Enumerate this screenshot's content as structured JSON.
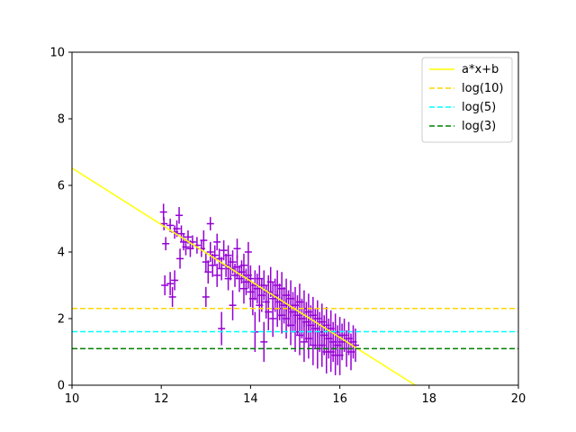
{
  "chart_data": {
    "type": "scatter",
    "xlim": [
      10,
      20
    ],
    "ylim": [
      0,
      10
    ],
    "xticks": [
      "10",
      "12",
      "14",
      "16",
      "18",
      "20"
    ],
    "yticks": [
      "0",
      "2",
      "4",
      "6",
      "8",
      "10"
    ],
    "grid": false,
    "legend_position": "top-right",
    "marker_color": "#9400D3",
    "lines": [
      {
        "name": "a*x+b",
        "kind": "fit",
        "slope": -0.848,
        "intercept": 15.0,
        "color": "#FFFF00",
        "dash": "solid"
      },
      {
        "name": "log(10)",
        "kind": "hline",
        "y": 2.3026,
        "color": "#FFD700",
        "dash": "dashed"
      },
      {
        "name": "log(5)",
        "kind": "hline",
        "y": 1.6094,
        "color": "#00FFFF",
        "dash": "dashed"
      },
      {
        "name": "log(3)",
        "kind": "hline",
        "y": 1.0986,
        "color": "#008000",
        "dash": "dashed"
      }
    ],
    "points": [
      [
        12.05,
        5.2,
        0.25
      ],
      [
        12.06,
        4.85,
        0.2
      ],
      [
        12.1,
        4.25,
        0.2
      ],
      [
        12.08,
        3.0,
        0.3
      ],
      [
        12.2,
        3.05,
        0.35
      ],
      [
        12.25,
        2.65,
        0.3
      ],
      [
        12.3,
        3.15,
        0.3
      ],
      [
        12.2,
        4.8,
        0.2
      ],
      [
        12.3,
        4.6,
        0.2
      ],
      [
        12.35,
        4.7,
        0.25
      ],
      [
        12.4,
        5.1,
        0.25
      ],
      [
        12.45,
        4.55,
        0.25
      ],
      [
        12.5,
        4.3,
        0.25
      ],
      [
        12.42,
        3.8,
        0.3
      ],
      [
        12.55,
        4.15,
        0.25
      ],
      [
        12.6,
        4.45,
        0.2
      ],
      [
        12.65,
        4.1,
        0.25
      ],
      [
        12.7,
        4.3,
        0.2
      ],
      [
        12.8,
        4.2,
        0.25
      ],
      [
        12.9,
        4.1,
        0.25
      ],
      [
        12.95,
        4.35,
        0.3
      ],
      [
        13.0,
        3.7,
        0.3
      ],
      [
        13.0,
        2.65,
        0.3
      ],
      [
        13.05,
        3.4,
        0.35
      ],
      [
        13.1,
        4.85,
        0.2
      ],
      [
        13.1,
        4.0,
        0.3
      ],
      [
        13.15,
        3.6,
        0.35
      ],
      [
        13.2,
        3.9,
        0.3
      ],
      [
        13.25,
        4.3,
        0.25
      ],
      [
        13.25,
        3.3,
        0.35
      ],
      [
        13.3,
        3.8,
        0.3
      ],
      [
        13.35,
        1.7,
        0.5
      ],
      [
        13.35,
        3.5,
        0.35
      ],
      [
        13.4,
        4.05,
        0.3
      ],
      [
        13.45,
        3.6,
        0.35
      ],
      [
        13.5,
        3.9,
        0.3
      ],
      [
        13.5,
        3.2,
        0.35
      ],
      [
        13.55,
        3.5,
        0.35
      ],
      [
        13.6,
        3.7,
        0.35
      ],
      [
        13.6,
        2.4,
        0.45
      ],
      [
        13.65,
        3.3,
        0.35
      ],
      [
        13.7,
        3.55,
        0.35
      ],
      [
        13.7,
        4.1,
        0.3
      ],
      [
        13.75,
        3.2,
        0.4
      ],
      [
        13.8,
        3.4,
        0.35
      ],
      [
        13.85,
        2.9,
        0.45
      ],
      [
        13.85,
        3.6,
        0.35
      ],
      [
        13.9,
        3.1,
        0.4
      ],
      [
        13.95,
        3.3,
        0.4
      ],
      [
        13.95,
        4.0,
        0.3
      ],
      [
        14.0,
        2.8,
        0.45
      ],
      [
        14.0,
        3.2,
        0.4
      ],
      [
        14.05,
        2.6,
        0.5
      ],
      [
        14.1,
        3.0,
        0.45
      ],
      [
        14.1,
        1.6,
        0.6
      ],
      [
        14.15,
        2.9,
        0.45
      ],
      [
        14.2,
        3.2,
        0.4
      ],
      [
        14.2,
        2.4,
        0.5
      ],
      [
        14.25,
        2.7,
        0.5
      ],
      [
        14.3,
        3.0,
        0.45
      ],
      [
        14.3,
        1.3,
        0.6
      ],
      [
        14.35,
        2.5,
        0.5
      ],
      [
        14.4,
        2.8,
        0.5
      ],
      [
        14.4,
        2.2,
        0.55
      ],
      [
        14.45,
        3.1,
        0.45
      ],
      [
        14.5,
        2.6,
        0.5
      ],
      [
        14.5,
        2.0,
        0.55
      ],
      [
        14.55,
        2.7,
        0.5
      ],
      [
        14.6,
        2.3,
        0.55
      ],
      [
        14.6,
        3.0,
        0.45
      ],
      [
        14.65,
        2.5,
        0.55
      ],
      [
        14.7,
        2.1,
        0.55
      ],
      [
        14.7,
        2.9,
        0.5
      ],
      [
        14.75,
        2.4,
        0.55
      ],
      [
        14.8,
        2.0,
        0.6
      ],
      [
        14.8,
        2.7,
        0.5
      ],
      [
        14.85,
        2.3,
        0.55
      ],
      [
        14.9,
        1.8,
        0.6
      ],
      [
        14.9,
        2.6,
        0.55
      ],
      [
        14.95,
        2.2,
        0.6
      ],
      [
        15.0,
        2.4,
        0.55
      ],
      [
        15.0,
        1.6,
        0.6
      ],
      [
        15.05,
        2.1,
        0.6
      ],
      [
        15.1,
        2.5,
        0.55
      ],
      [
        15.1,
        1.5,
        0.6
      ],
      [
        15.15,
        2.0,
        0.6
      ],
      [
        15.2,
        2.3,
        0.55
      ],
      [
        15.2,
        1.3,
        0.6
      ],
      [
        15.25,
        1.9,
        0.6
      ],
      [
        15.3,
        2.2,
        0.55
      ],
      [
        15.3,
        1.4,
        0.6
      ],
      [
        15.35,
        1.8,
        0.6
      ],
      [
        15.4,
        2.1,
        0.55
      ],
      [
        15.4,
        1.2,
        0.6
      ],
      [
        15.45,
        1.7,
        0.6
      ],
      [
        15.5,
        2.0,
        0.55
      ],
      [
        15.5,
        1.1,
        0.6
      ],
      [
        15.55,
        1.6,
        0.6
      ],
      [
        15.6,
        1.9,
        0.55
      ],
      [
        15.6,
        1.2,
        0.65
      ],
      [
        15.65,
        1.5,
        0.6
      ],
      [
        15.7,
        1.8,
        0.55
      ],
      [
        15.7,
        1.0,
        0.65
      ],
      [
        15.75,
        1.4,
        0.6
      ],
      [
        15.8,
        1.7,
        0.55
      ],
      [
        15.8,
        1.0,
        0.6
      ],
      [
        15.85,
        1.3,
        0.6
      ],
      [
        15.9,
        1.6,
        0.55
      ],
      [
        15.9,
        0.9,
        0.6
      ],
      [
        15.95,
        1.2,
        0.6
      ],
      [
        16.0,
        1.5,
        0.55
      ],
      [
        16.0,
        0.9,
        0.6
      ],
      [
        16.05,
        1.3,
        0.55
      ],
      [
        16.1,
        1.5,
        0.5
      ],
      [
        16.15,
        1.1,
        0.55
      ],
      [
        16.2,
        1.4,
        0.5
      ],
      [
        16.25,
        1.0,
        0.55
      ],
      [
        16.3,
        1.3,
        0.5
      ],
      [
        16.35,
        1.2,
        0.5
      ]
    ]
  }
}
